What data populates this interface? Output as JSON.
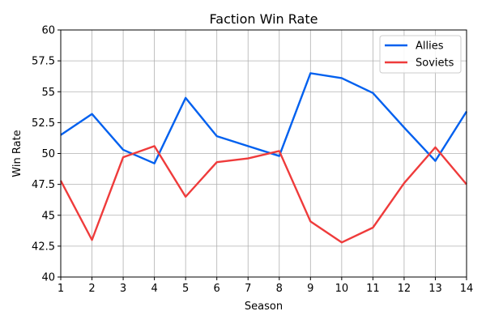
{
  "chart_data": {
    "type": "line",
    "title": "Faction Win Rate",
    "xlabel": "Season",
    "ylabel": "Win Rate",
    "x": [
      1,
      2,
      3,
      4,
      5,
      6,
      7,
      8,
      9,
      10,
      11,
      12,
      13,
      14
    ],
    "xlim": [
      1,
      14
    ],
    "ylim": [
      40,
      60
    ],
    "yticks": [
      40,
      42.5,
      45,
      47.5,
      50,
      52.5,
      55,
      57.5,
      60
    ],
    "ytick_labels": [
      "40",
      "42.5",
      "45",
      "47.5",
      "50",
      "52.5",
      "55",
      "57.5",
      "60"
    ],
    "xticks": [
      1,
      2,
      3,
      4,
      5,
      6,
      7,
      8,
      9,
      10,
      11,
      12,
      13,
      14
    ],
    "xtick_labels": [
      "1",
      "2",
      "3",
      "4",
      "5",
      "6",
      "7",
      "8",
      "9",
      "10",
      "11",
      "12",
      "13",
      "14"
    ],
    "grid": true,
    "legend_position": "top-right",
    "series": [
      {
        "name": "Allies",
        "color": "#0060ef",
        "values": [
          51.5,
          53.2,
          50.3,
          49.2,
          54.5,
          51.4,
          50.6,
          49.8,
          56.5,
          56.1,
          54.9,
          52.1,
          49.4,
          53.4
        ]
      },
      {
        "name": "Soviets",
        "color": "#ef3b3b",
        "values": [
          47.8,
          43.0,
          49.7,
          50.6,
          46.5,
          49.3,
          49.6,
          50.2,
          44.5,
          42.8,
          44.0,
          47.6,
          50.5,
          47.5
        ]
      }
    ]
  }
}
